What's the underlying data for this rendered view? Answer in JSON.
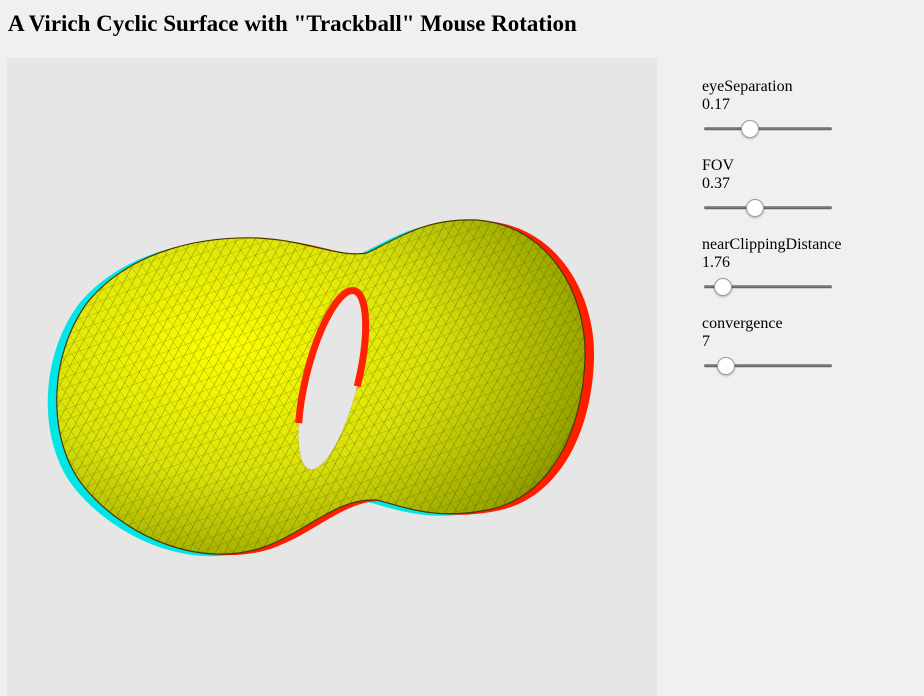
{
  "page": {
    "title": "A Virich Cyclic Surface with \"Trackball\" Mouse Rotation"
  },
  "colors": {
    "canvas_background": "#e6e6e6",
    "page_background": "#f0f0f0",
    "surface_fill": "#e8ec10",
    "anaglyph_left": "#00e8e8",
    "anaglyph_right": "#ff1a00",
    "mesh_lines": "#1a5a00"
  },
  "controls": [
    {
      "name": "eyeSeparation",
      "value": "0.17",
      "fraction": 0.34
    },
    {
      "name": "FOV",
      "value": "0.37",
      "fraction": 0.38
    },
    {
      "name": "nearClippingDistance",
      "value": "1.76",
      "fraction": 0.09
    },
    {
      "name": "convergence",
      "value": "7",
      "fraction": 0.12
    }
  ]
}
